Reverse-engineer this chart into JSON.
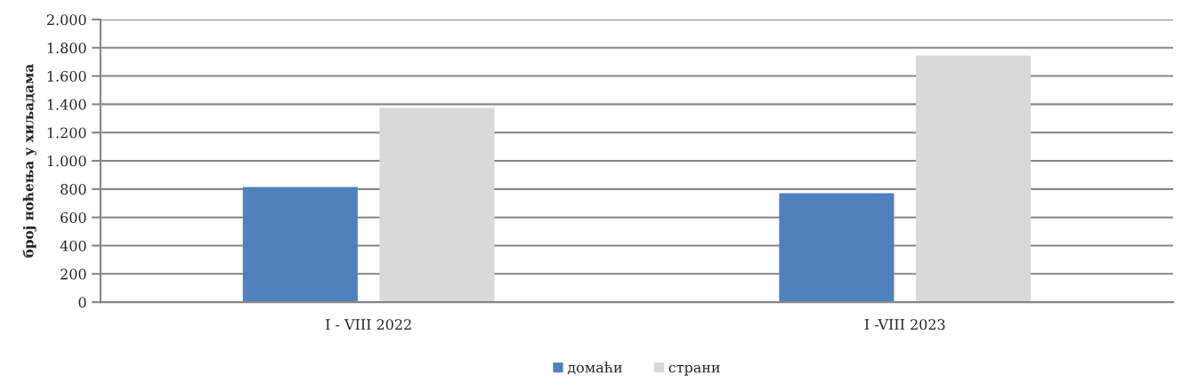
{
  "chart_data": {
    "type": "bar",
    "ylabel": "број ноћења у хиљадама",
    "categories": [
      "I - VIII 2022",
      "I -VIII 2023"
    ],
    "series": [
      {
        "name": "домаћи",
        "color": "#4f81bd",
        "values": [
          815,
          770
        ]
      },
      {
        "name": "страни",
        "color": "#d9d9d9",
        "values": [
          1375,
          1745
        ]
      }
    ],
    "ylim": [
      0,
      2000
    ],
    "yticks": [
      0,
      200,
      400,
      600,
      800,
      {
        "value": 1000,
        "label": "1.000"
      },
      {
        "value": 1200,
        "label": "1.200"
      },
      {
        "value": 1400,
        "label": "1.400"
      },
      {
        "value": 1600,
        "label": "1.600"
      },
      {
        "value": 1800,
        "label": "1.800"
      },
      {
        "value": 2000,
        "label": "2.000"
      }
    ],
    "grid": "y",
    "legend": "bottom"
  }
}
